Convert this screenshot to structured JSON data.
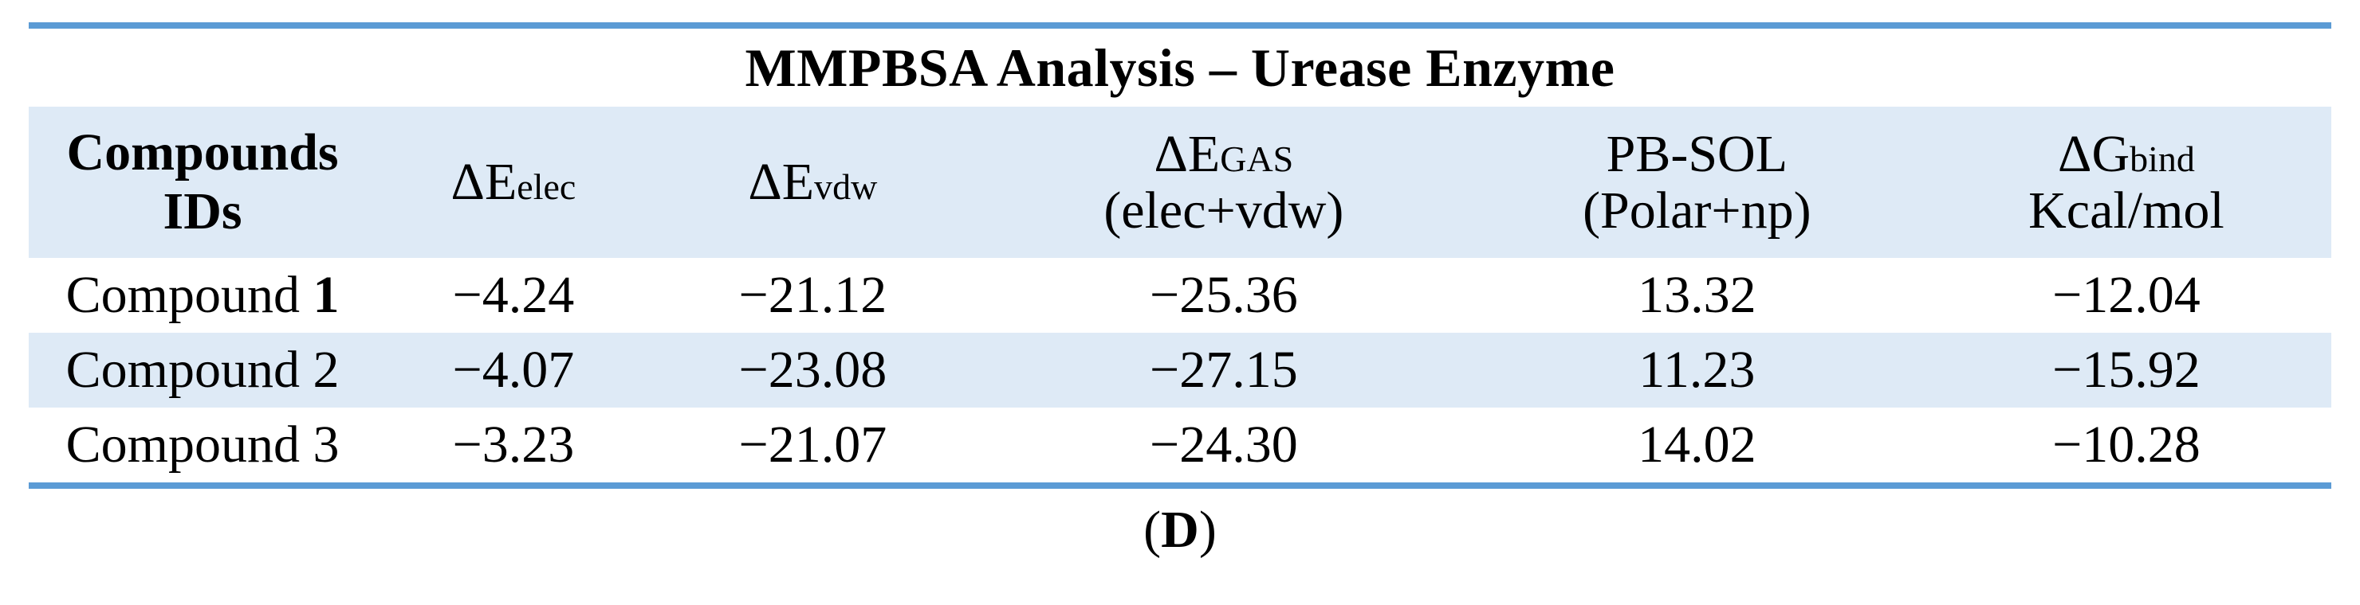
{
  "table": {
    "title": "MMPBSA Analysis – Urease Enzyme",
    "headers": {
      "compounds_line1": "Compounds",
      "compounds_line2": "IDs",
      "elec_delta": "ΔE",
      "elec_sub": "elec",
      "vdw_delta": "ΔE",
      "vdw_sub": "vdw",
      "gas_delta": "ΔE",
      "gas_sub": "GAS",
      "gas_line2": "(elec+vdw)",
      "pbsol_line1": "PB-SOL",
      "pbsol_line2": "(Polar+np)",
      "gbind_delta": "ΔG",
      "gbind_sub": "bind",
      "gbind_line2": "Kcal/mol"
    },
    "rows": [
      {
        "name_prefix": "Compound ",
        "name_number": "1",
        "elec": "−4.24",
        "vdw": "−21.12",
        "gas": "−25.36",
        "pbsol": "13.32",
        "gbind": "−12.04"
      },
      {
        "name_prefix": "Compound ",
        "name_number": "2",
        "elec": "−4.07",
        "vdw": "−23.08",
        "gas": "−27.15",
        "pbsol": "11.23",
        "gbind": "−15.92"
      },
      {
        "name_prefix": "Compound ",
        "name_number": "3",
        "elec": "−3.23",
        "vdw": "−21.07",
        "gas": "−24.30",
        "pbsol": "14.02",
        "gbind": "−10.28"
      }
    ],
    "caption": {
      "open": "(",
      "letter": "D",
      "close": ")"
    },
    "colors": {
      "rule": "#5b9bd5",
      "shade": "#deeaf6"
    }
  }
}
